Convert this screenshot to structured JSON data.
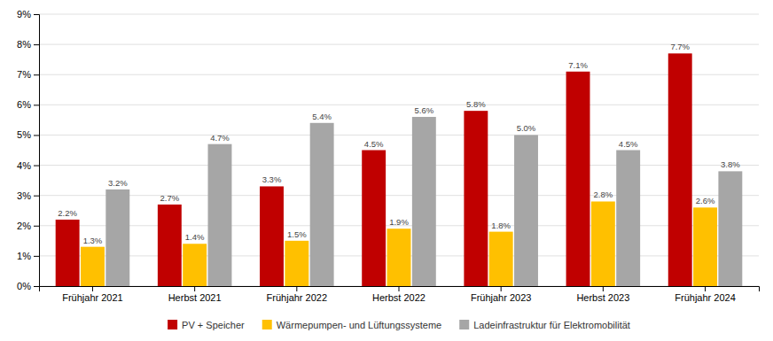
{
  "chart_data": {
    "type": "bar",
    "categories": [
      "Frühjahr 2021",
      "Herbst 2021",
      "Frühjahr 2022",
      "Herbst 2022",
      "Frühjahr 2023",
      "Herbst 2023",
      "Frühjahr 2024"
    ],
    "series": [
      {
        "name": "PV + Speicher",
        "color": "#C00000",
        "values": [
          2.2,
          2.7,
          3.3,
          4.5,
          5.8,
          7.1,
          7.7
        ],
        "value_labels": [
          "2.2%",
          "2.7%",
          "3.3%",
          "4.5%",
          "5.8%",
          "7.1%",
          "7.7%"
        ]
      },
      {
        "name": "Wärmepumpen- und Lüftungssysteme",
        "color": "#FFC000",
        "values": [
          1.3,
          1.4,
          1.5,
          1.9,
          1.8,
          2.8,
          2.6
        ],
        "value_labels": [
          "1.3%",
          "1.4%",
          "1.5%",
          "1.9%",
          "1.8%",
          "2.8%",
          "2.6%"
        ]
      },
      {
        "name": "Ladeinfrastruktur für Elektromobilität",
        "color": "#A6A6A6",
        "values": [
          3.2,
          4.7,
          5.4,
          5.6,
          5.0,
          4.5,
          3.8
        ],
        "value_labels": [
          "3.2%",
          "4.7%",
          "5.4%",
          "5.6%",
          "5.0%",
          "4.5%",
          "3.8%"
        ]
      }
    ],
    "ylim": [
      0,
      9
    ],
    "yticks": [
      {
        "value": 0,
        "label": "0%"
      },
      {
        "value": 1,
        "label": "1%"
      },
      {
        "value": 2,
        "label": "2%"
      },
      {
        "value": 3,
        "label": "3%"
      },
      {
        "value": 4,
        "label": "4%"
      },
      {
        "value": 5,
        "label": "5%"
      },
      {
        "value": 6,
        "label": "6%"
      },
      {
        "value": 7,
        "label": "7%"
      },
      {
        "value": 8,
        "label": "8%"
      },
      {
        "value": 9,
        "label": "9%"
      }
    ],
    "grid": true,
    "legend": "bottom",
    "data_labels": true
  }
}
